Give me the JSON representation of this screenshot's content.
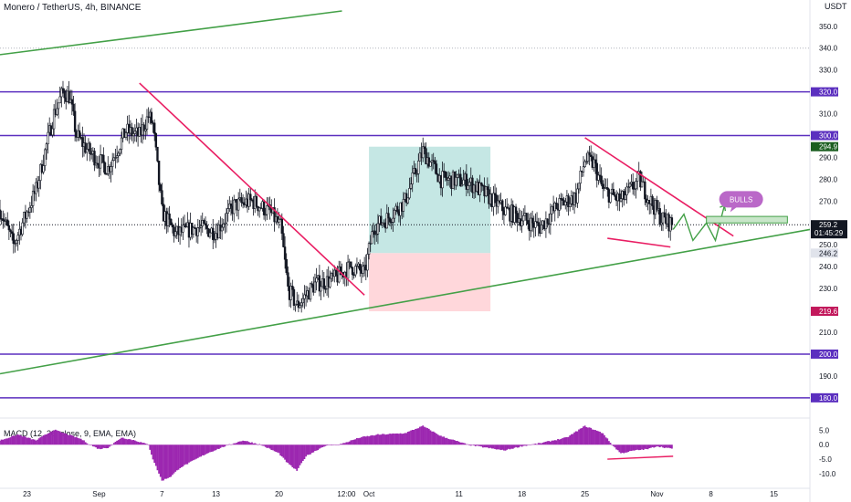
{
  "header": {
    "symbol": "Monero / TetherUS, 4h, BINANCE",
    "currency_label": "USDT"
  },
  "colors": {
    "candle": "#131722",
    "horizontal_level": "#5b2fbf",
    "trendline": "#e91e63",
    "channel": "#43a047",
    "long_profit": "#b2dfdb",
    "long_loss": "#ffcdd2",
    "macd_hist": "#9c27b0",
    "callout": "#ba68c8",
    "price_tag": "#131722",
    "target_tag": "#c2185b",
    "up_tag": "#1b5e20",
    "gray_tag": "#e0e3eb"
  },
  "chart_data": {
    "type": "candlestick",
    "title": "Monero / TetherUS, 4h, BINANCE",
    "y_range": [
      172,
      357
    ],
    "y_ticks": [
      180,
      190,
      200,
      210,
      230,
      240,
      250,
      260,
      270,
      280,
      290,
      300,
      310,
      320,
      330,
      340,
      350
    ],
    "x_ticks": [
      "23",
      "Sep",
      "7",
      "13",
      "20",
      "12:00",
      "Oct",
      "11",
      "18",
      "25",
      "Nov",
      "8",
      "15"
    ],
    "x_tick_days": [
      -9,
      -1,
      6,
      12,
      19,
      26.5,
      29,
      39,
      46,
      53,
      61,
      67,
      74
    ],
    "last_day": 62.8,
    "day_domain": [
      -12,
      78
    ],
    "close_path": [
      [
        -12,
        266
      ],
      [
        -10.5,
        250
      ],
      [
        -8,
        275
      ],
      [
        -6,
        310
      ],
      [
        -5,
        320
      ],
      [
        -4.3,
        318
      ],
      [
        -3.5,
        300
      ],
      [
        -2,
        292
      ],
      [
        0,
        285
      ],
      [
        2,
        302
      ],
      [
        3.5,
        300
      ],
      [
        4.5,
        309
      ],
      [
        5,
        305
      ],
      [
        6,
        265
      ],
      [
        7.5,
        255
      ],
      [
        10,
        258
      ],
      [
        12,
        256
      ],
      [
        14,
        268
      ],
      [
        16,
        270
      ],
      [
        18,
        265
      ],
      [
        19.2,
        258
      ],
      [
        20,
        230
      ],
      [
        21,
        222
      ],
      [
        23,
        232
      ],
      [
        25,
        234
      ],
      [
        27,
        240
      ],
      [
        28.5,
        237
      ],
      [
        29.5,
        258
      ],
      [
        31,
        262
      ],
      [
        33,
        270
      ],
      [
        35,
        293
      ],
      [
        37,
        280
      ],
      [
        40,
        279
      ],
      [
        42,
        273
      ],
      [
        44,
        266
      ],
      [
        46,
        262
      ],
      [
        48,
        258
      ],
      [
        50,
        268
      ],
      [
        52,
        272
      ],
      [
        53,
        289
      ],
      [
        54,
        287
      ],
      [
        55,
        275
      ],
      [
        57,
        270
      ],
      [
        59,
        280
      ],
      [
        60,
        272
      ],
      [
        61.5,
        262
      ],
      [
        62.8,
        259.2
      ]
    ],
    "macd_hist_path": [
      [
        -12,
        1.5
      ],
      [
        -10,
        3.5
      ],
      [
        -8,
        1.5
      ],
      [
        -6,
        5.2
      ],
      [
        -3,
        2
      ],
      [
        -2,
        0
      ],
      [
        -1,
        -1.5
      ],
      [
        0,
        -1
      ],
      [
        1.5,
        2.5
      ],
      [
        3,
        1.5
      ],
      [
        4.5,
        0
      ],
      [
        5,
        -5
      ],
      [
        6,
        -12.5
      ],
      [
        7,
        -11
      ],
      [
        8,
        -8
      ],
      [
        11,
        -3
      ],
      [
        13,
        -0.5
      ],
      [
        15,
        1.5
      ],
      [
        17,
        0
      ],
      [
        19,
        -3
      ],
      [
        20,
        -6.5
      ],
      [
        21,
        -9
      ],
      [
        22,
        -4
      ],
      [
        24,
        -0.5
      ],
      [
        26,
        0.3
      ],
      [
        28,
        2.5
      ],
      [
        30,
        3.5
      ],
      [
        33,
        4
      ],
      [
        35,
        6.5
      ],
      [
        37,
        3
      ],
      [
        40,
        0
      ],
      [
        42,
        -1
      ],
      [
        44,
        -2
      ],
      [
        46,
        -0.5
      ],
      [
        48,
        0.5
      ],
      [
        51,
        2.5
      ],
      [
        53,
        6.5
      ],
      [
        55,
        4
      ],
      [
        56,
        0
      ],
      [
        57,
        -3
      ],
      [
        58.5,
        -2
      ],
      [
        60,
        -1.5
      ],
      [
        61,
        -0.5
      ],
      [
        62.8,
        -1.5
      ]
    ],
    "macd": {
      "label": "MACD (12, 26, close, 9, EMA, EMA)",
      "y_range": [
        -14.5,
        8
      ],
      "y_ticks": [
        5.0,
        0.0,
        -5.0,
        -10.0
      ]
    },
    "levels": [
      {
        "price": 320.0,
        "label": "320.0"
      },
      {
        "price": 300.0,
        "label": "300.0"
      },
      {
        "price": 200.0,
        "label": "200.0"
      },
      {
        "price": 180.0,
        "label": "180.0"
      }
    ],
    "reference_line": {
      "price": 340
    },
    "current": {
      "price": 259.2,
      "label": "259.2",
      "countdown": "01:45:29"
    },
    "position": {
      "type": "long",
      "entry": 246.2,
      "target": 294.9,
      "stop": 219.6,
      "day_start": 29,
      "day_end": 42.5
    },
    "tags": [
      {
        "price": 294.9,
        "label": "294.9",
        "kind": "up"
      },
      {
        "price": 246.2,
        "label": "246.2",
        "kind": "gray"
      },
      {
        "price": 219.6,
        "label": "219.6",
        "kind": "target"
      }
    ],
    "trendlines": [
      {
        "kind": "trendline",
        "points": [
          [
            3.5,
            324
          ],
          [
            28.5,
            227
          ]
        ]
      },
      {
        "kind": "trendline",
        "points": [
          [
            53,
            299
          ],
          [
            69.5,
            254
          ]
        ]
      },
      {
        "kind": "trendline",
        "points": [
          [
            55.5,
            253
          ],
          [
            62.5,
            249
          ]
        ]
      },
      {
        "kind": "channel",
        "points": [
          [
            -12,
            191
          ],
          [
            78,
            257
          ]
        ]
      },
      {
        "kind": "channel",
        "points": [
          [
            -12,
            337
          ],
          [
            26,
            357
          ]
        ]
      }
    ],
    "macd_divergence": [
      [
        55.5,
        -5
      ],
      [
        62.8,
        -4
      ]
    ],
    "projection": [
      [
        62.8,
        257
      ],
      [
        64,
        264
      ],
      [
        65,
        252
      ],
      [
        66.5,
        260
      ],
      [
        67.5,
        252
      ],
      [
        68.5,
        268
      ]
    ],
    "resistance_box": {
      "price_top": 263,
      "price_bottom": 260,
      "day_start": 66.5,
      "day_end": 75.5
    },
    "callout": {
      "text": "BULLS"
    }
  }
}
